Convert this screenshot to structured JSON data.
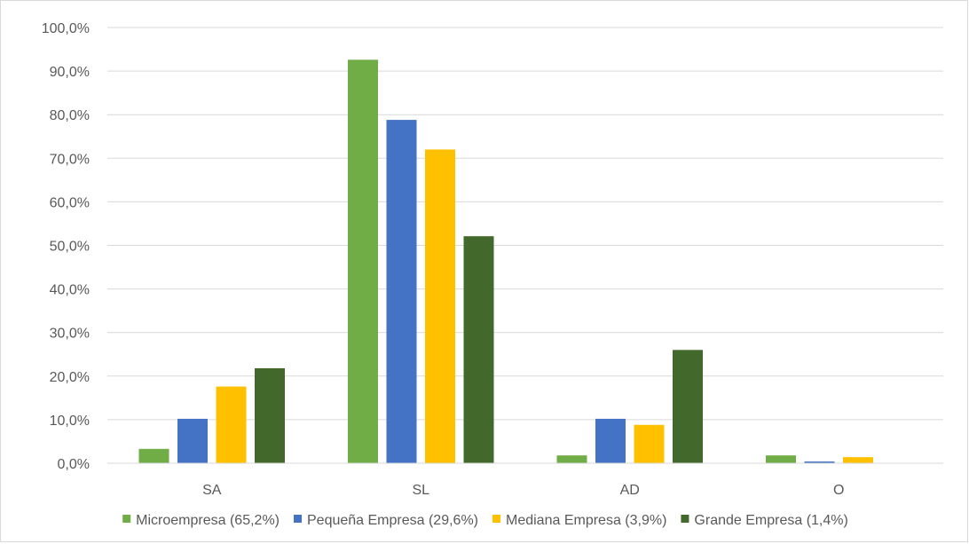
{
  "chart_data": {
    "type": "bar",
    "categories": [
      "SA",
      "SL",
      "AD",
      "O"
    ],
    "series": [
      {
        "name": "Microempresa (65,2%)",
        "color": "#70ad47",
        "values": [
          3.3,
          92.6,
          1.8,
          1.8
        ]
      },
      {
        "name": "Pequeña Empresa (29,6%)",
        "color": "#4472c4",
        "values": [
          10.2,
          78.8,
          10.2,
          0.4
        ]
      },
      {
        "name": "Mediana Empresa (3,9%)",
        "color": "#ffc000",
        "values": [
          17.6,
          72.0,
          8.8,
          1.4
        ]
      },
      {
        "name": "Grande Empresa (1,4%)",
        "color": "#43682b",
        "values": [
          21.8,
          52.1,
          26.0,
          0.0
        ]
      }
    ],
    "ylim": [
      0,
      100
    ],
    "yticks": [
      "0,0%",
      "10,0%",
      "20,0%",
      "30,0%",
      "40,0%",
      "50,0%",
      "60,0%",
      "70,0%",
      "80,0%",
      "90,0%",
      "100,0%"
    ],
    "grid": true,
    "legend_position": "bottom",
    "title": "",
    "xlabel": "",
    "ylabel": ""
  }
}
